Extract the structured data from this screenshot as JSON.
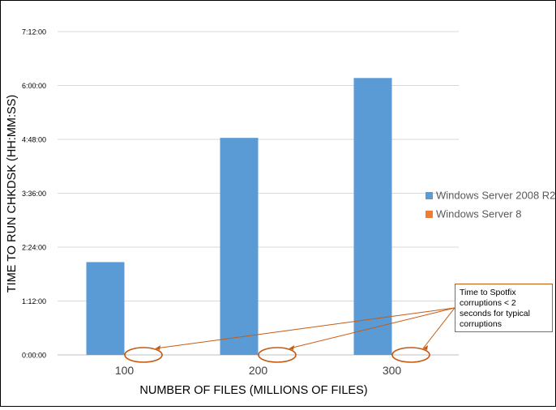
{
  "chart_data": {
    "type": "bar",
    "title": "",
    "xlabel": "NUMBER OF FILES (MILLIONS OF FILES)",
    "ylabel": "TIME TO RUN CHKDSK (HH:MM:SS)",
    "categories": [
      "100",
      "200",
      "300"
    ],
    "yticks": [
      "0:00:00",
      "1:12:00",
      "2:24:00",
      "3:36:00",
      "4:48:00",
      "6:00:00",
      "7:12:00"
    ],
    "ylim_minutes": [
      0,
      432
    ],
    "series": [
      {
        "name": "Windows Server 2008 R2",
        "color": "#5b9bd5",
        "values_minutes": [
          124,
          290,
          370
        ]
      },
      {
        "name": "Windows Server 8",
        "color": "#ed7d31",
        "values_minutes": [
          0,
          0,
          0
        ]
      }
    ],
    "legend_position": "right",
    "grid": true,
    "annotation": {
      "text": "Time to Spotfix corruptions < 2 seconds for typical corruptions",
      "color": "#c55a11"
    }
  }
}
